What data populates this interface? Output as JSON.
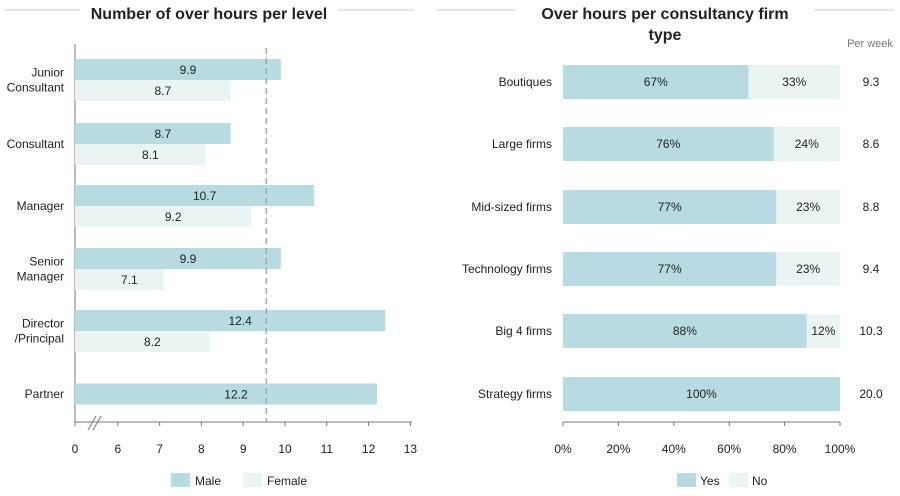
{
  "colors": {
    "primary": "#b7dbe0",
    "secondary": "#eaf4f4",
    "dashed": "#999999",
    "axis": "#777777",
    "title_rule": "#cccccc"
  },
  "chart_data": [
    {
      "type": "bar",
      "orientation": "horizontal",
      "title": "Number of over hours per level",
      "categories": [
        [
          "Junior",
          "Consultant"
        ],
        [
          "Consultant"
        ],
        [
          "Manager"
        ],
        [
          "Senior",
          "Manager"
        ],
        [
          "Director",
          "/Principal"
        ],
        [
          "Partner"
        ]
      ],
      "series": [
        {
          "name": "Male",
          "values": [
            9.9,
            8.7,
            10.7,
            9.9,
            12.4,
            12.2
          ]
        },
        {
          "name": "Female",
          "values": [
            8.7,
            8.1,
            9.2,
            7.1,
            8.2,
            null
          ]
        }
      ],
      "x_ticks": [
        "0",
        "6",
        "7",
        "8",
        "9",
        "10",
        "11",
        "12",
        "13"
      ],
      "axis_break": "between 0 and 6",
      "reference_line": 9.55,
      "legend": "bottom",
      "grid": false
    },
    {
      "type": "bar",
      "orientation": "horizontal",
      "stacked": "percent",
      "title": [
        "Over hours per consultancy firm",
        "type"
      ],
      "categories": [
        "Boutiques",
        "Large firms",
        "Mid-sized firms",
        "Technology firms",
        "Big 4 firms",
        "Strategy firms"
      ],
      "series": [
        {
          "name": "Yes",
          "values": [
            67,
            76,
            77,
            77,
            88,
            100
          ]
        },
        {
          "name": "No",
          "values": [
            33,
            24,
            23,
            23,
            12,
            0
          ]
        }
      ],
      "value_labels": {
        "Yes": [
          "67%",
          "76%",
          "77%",
          "77%",
          "88%",
          "100%"
        ],
        "No": [
          "33%",
          "24%",
          "23%",
          "23%",
          "12%",
          ""
        ]
      },
      "extra_column": {
        "header": "Per week",
        "values": [
          "9.3",
          "8.6",
          "8.8",
          "9.4",
          "10.3",
          "20.0"
        ]
      },
      "x_ticks": [
        "0%",
        "20%",
        "40%",
        "60%",
        "80%",
        "100%"
      ],
      "xlim": [
        0,
        100
      ],
      "legend": "bottom",
      "grid": false
    }
  ]
}
